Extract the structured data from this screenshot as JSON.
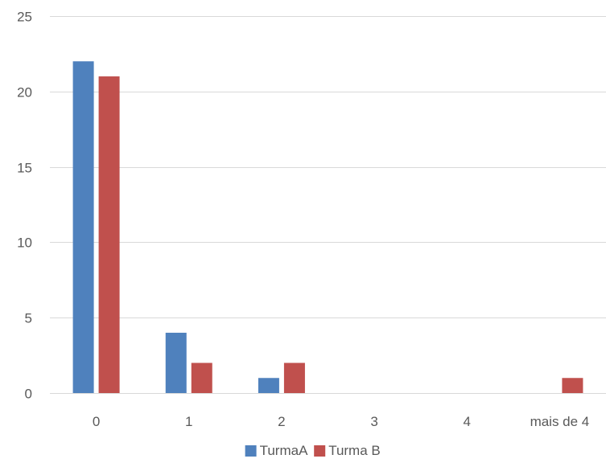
{
  "chart_data": {
    "type": "bar",
    "title": "",
    "xlabel": "",
    "ylabel": "",
    "categories": [
      "0",
      "1",
      "2",
      "3",
      "4",
      "mais de 4"
    ],
    "series": [
      {
        "name": "TurmaA",
        "values": [
          22,
          4,
          1,
          0,
          0,
          0
        ],
        "color": "#4f81bd"
      },
      {
        "name": "Turma B",
        "values": [
          21,
          2,
          2,
          0,
          0,
          1
        ],
        "color": "#c0504d"
      }
    ],
    "ylim": [
      0,
      25
    ],
    "yticks": [
      0,
      5,
      10,
      15,
      20,
      25
    ],
    "grid": true,
    "legend_position": "bottom"
  }
}
